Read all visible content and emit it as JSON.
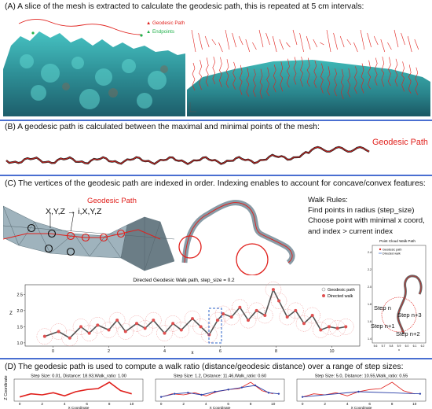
{
  "panelA": {
    "caption": "(A) A slice of the mesh is extracted to calculate the geodesic path, this is repeated at 5 cm intervals:",
    "legend_geodesic": "Geodesic Path",
    "legend_endpoints": "Endpoints",
    "colors": {
      "geodesic": "#e0201c",
      "endpoints": "#21b14b",
      "reef": "#3aa8a8"
    }
  },
  "panelB": {
    "caption": "(B) A geodesic path is calculated between the maximal and minimal points of the mesh:",
    "label": "Geodesic Path"
  },
  "panelC": {
    "caption": "(C) The vertices of the geodesic path are indexed in order. Indexing enables to account for concave/convex features:",
    "label": "Geodesic Path",
    "formula": "X,Y,Z → i,X,Y,Z",
    "walk_rules": {
      "title": "Walk Rules:",
      "line1": "Find points in radius (step_size)",
      "line2": "Choose point with minimal x coord,",
      "line3": "and index > current index"
    },
    "inset": {
      "title": "Point Cloud Walk Path",
      "legend1": "Geodesic path",
      "legend2": "Directed walk",
      "step_n": "Step n",
      "step_n1": "Step n+1",
      "step_n2": "Step n+2",
      "step_n3": "Step n+3",
      "xlabel": "x",
      "xticks": [
        "5.6",
        "5.7",
        "5.8",
        "5.9",
        "6.0",
        "6.1",
        "6.2"
      ],
      "yticks": [
        "1.4",
        "1.6",
        "1.8",
        "2.0",
        "2.2",
        "2.4"
      ]
    },
    "walk_chart": {
      "title": "Directed Geodesic Walk path, step_size = 0.2",
      "xlabel": "x",
      "ylabel": "Z",
      "legend1": "Geodesic path",
      "legend2": "Directed walk",
      "xticks": [
        "0",
        "2",
        "4",
        "6",
        "8",
        "10"
      ],
      "yticks": [
        "1.0",
        "1.5",
        "2.0",
        "2.5"
      ]
    }
  },
  "panelD": {
    "caption": "(D) The geodesic path is used to compute a walk ratio (distance/geodesic distance) over a range of step sizes:",
    "ylabel": "Z Coordinate",
    "xlabel": "X Coordinate",
    "xticks": [
      "0",
      "2",
      "4",
      "6",
      "8",
      "10"
    ],
    "plots": [
      {
        "title": "Step Size: 0.01, Distance: 18.93,Walk_ratio: 1.00"
      },
      {
        "title": "Step Size: 1.2, Distance: 11.46,Walk_ratio: 0.60"
      },
      {
        "title": "Step Size: 5.0, Distance: 10.55,Walk_ratio: 0.55"
      }
    ]
  },
  "chart_data": [
    {
      "type": "line",
      "title": "Directed Geodesic Walk path, step_size = 0.2",
      "xlabel": "x",
      "ylabel": "Z",
      "xlim": [
        -1,
        11
      ],
      "ylim": [
        0.9,
        2.8
      ],
      "series": [
        {
          "name": "Geodesic path",
          "x": [
            -0.3,
            0.2,
            0.6,
            1.0,
            1.3,
            1.6,
            2.0,
            2.3,
            2.6,
            3.0,
            3.3,
            3.6,
            4.0,
            4.3,
            4.6,
            5.0,
            5.3,
            5.6,
            5.9,
            6.1,
            6.4,
            6.7,
            7.0,
            7.3,
            7.6,
            7.9,
            8.1,
            8.4,
            8.7,
            9.0,
            9.3,
            9.6,
            9.9,
            10.2,
            10.5
          ],
          "y": [
            1.2,
            1.35,
            1.15,
            1.5,
            1.3,
            1.55,
            1.4,
            1.7,
            1.35,
            1.6,
            1.45,
            1.7,
            1.3,
            1.6,
            1.4,
            1.75,
            1.5,
            1.25,
            1.7,
            1.9,
            1.8,
            2.1,
            1.7,
            2.0,
            1.85,
            2.65,
            2.3,
            1.8,
            2.0,
            1.6,
            1.85,
            1.4,
            1.5,
            1.45,
            1.5
          ]
        },
        {
          "name": "Directed walk",
          "x": [
            -0.3,
            0.2,
            0.6,
            1.0,
            1.3,
            1.6,
            2.0,
            2.3,
            2.6,
            3.0,
            3.3,
            3.6,
            4.0,
            4.3,
            4.6,
            5.0,
            5.3,
            5.6,
            5.9,
            6.1,
            6.4,
            6.7,
            7.0,
            7.3,
            7.6,
            7.9,
            8.1,
            8.4,
            8.7,
            9.0,
            9.3,
            9.6,
            9.9,
            10.2,
            10.5
          ],
          "y": [
            1.2,
            1.35,
            1.15,
            1.5,
            1.3,
            1.55,
            1.4,
            1.7,
            1.35,
            1.6,
            1.45,
            1.7,
            1.3,
            1.6,
            1.4,
            1.75,
            1.5,
            1.25,
            1.7,
            1.9,
            1.8,
            2.1,
            1.7,
            2.0,
            1.85,
            2.65,
            2.3,
            1.8,
            2.0,
            1.6,
            1.85,
            1.4,
            1.5,
            1.45,
            1.5
          ]
        }
      ]
    },
    {
      "type": "line",
      "title": "Step Size: 0.01, Distance: 18.93,Walk_ratio: 1.00",
      "xlabel": "X Coordinate",
      "ylabel": "Z Coordinate",
      "xlim": [
        -0.5,
        11
      ],
      "ylim": [
        0.8,
        2.9
      ],
      "series": [
        {
          "x": [
            0,
            1,
            2,
            3,
            4,
            5,
            6,
            7,
            8,
            9,
            10
          ],
          "y": [
            1.2,
            1.5,
            1.4,
            1.6,
            1.3,
            1.7,
            1.9,
            2.0,
            2.6,
            1.8,
            1.5
          ]
        }
      ]
    },
    {
      "type": "line",
      "title": "Step Size: 1.2, Distance: 11.46,Walk_ratio: 0.60",
      "xlabel": "X Coordinate",
      "ylabel": "Z Coordinate",
      "xlim": [
        -0.5,
        11
      ],
      "ylim": [
        0.8,
        2.9
      ],
      "series": [
        {
          "x": [
            0,
            1.2,
            2.4,
            3.6,
            4.8,
            6.0,
            7.2,
            8.4,
            9.6,
            10.5
          ],
          "y": [
            1.2,
            1.5,
            1.6,
            1.4,
            1.7,
            1.9,
            2.1,
            2.3,
            1.6,
            1.5
          ]
        }
      ]
    },
    {
      "type": "line",
      "title": "Step Size: 5.0, Distance: 10.55,Walk_ratio: 0.55",
      "xlabel": "X Coordinate",
      "ylabel": "Z Coordinate",
      "xlim": [
        -0.5,
        11
      ],
      "ylim": [
        0.8,
        2.9
      ],
      "series": [
        {
          "x": [
            0,
            5.0,
            10.5
          ],
          "y": [
            1.2,
            1.7,
            1.5
          ]
        }
      ]
    }
  ]
}
